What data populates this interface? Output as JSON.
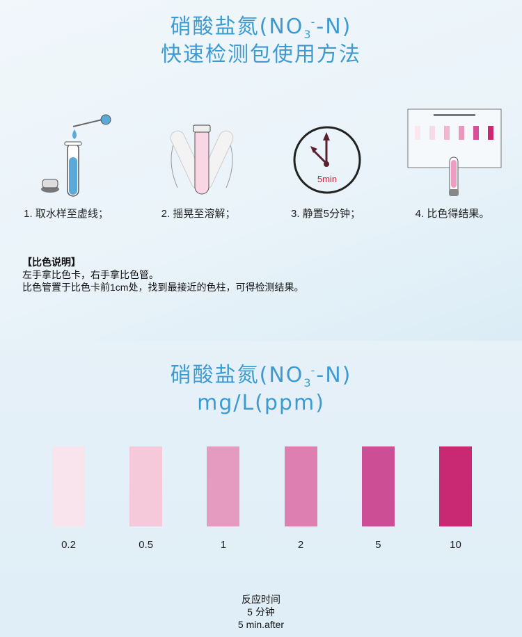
{
  "header": {
    "title_main": "硝酸盐氮(NO",
    "title_sub": "3",
    "title_sup": "-",
    "title_end": "-N)",
    "subtitle": "快速检测包使用方法"
  },
  "steps": [
    {
      "label": "1. 取水样至虚线；",
      "icon": "test-tube-dropper-icon"
    },
    {
      "label": "2. 摇晃至溶解；",
      "icon": "shake-tube-icon"
    },
    {
      "label": "3. 静置5分钟；",
      "icon": "clock-icon",
      "clock_text": "5min"
    },
    {
      "label": "4. 比色得结果。",
      "icon": "color-card-compare-icon"
    }
  ],
  "notes": {
    "heading": "【比色说明】",
    "lines": [
      "左手拿比色卡，右手拿比色管。",
      "比色管置于比色卡前1cm处，找到最接近的色柱，可得检测结果。"
    ]
  },
  "chart_header": {
    "title_main": "硝酸盐氮(NO",
    "title_sub": "3",
    "title_sup": "-",
    "title_end": "-N)",
    "unit": "mg/L(ppm)"
  },
  "swatches": [
    {
      "value": "0.2",
      "color": "#f9e3ec"
    },
    {
      "value": "0.5",
      "color": "#f5c8da"
    },
    {
      "value": "1",
      "color": "#e59ac0"
    },
    {
      "value": "2",
      "color": "#dd7fb0"
    },
    {
      "value": "5",
      "color": "#cc4e95"
    },
    {
      "value": "10",
      "color": "#c92872"
    }
  ],
  "reaction": {
    "line1": "反应时间",
    "line2": "5  分钟",
    "line3": "5  min.after"
  },
  "colors": {
    "title": "#3d9bd1",
    "water": "#5aa9d8",
    "clock_text": "#c0243a"
  }
}
